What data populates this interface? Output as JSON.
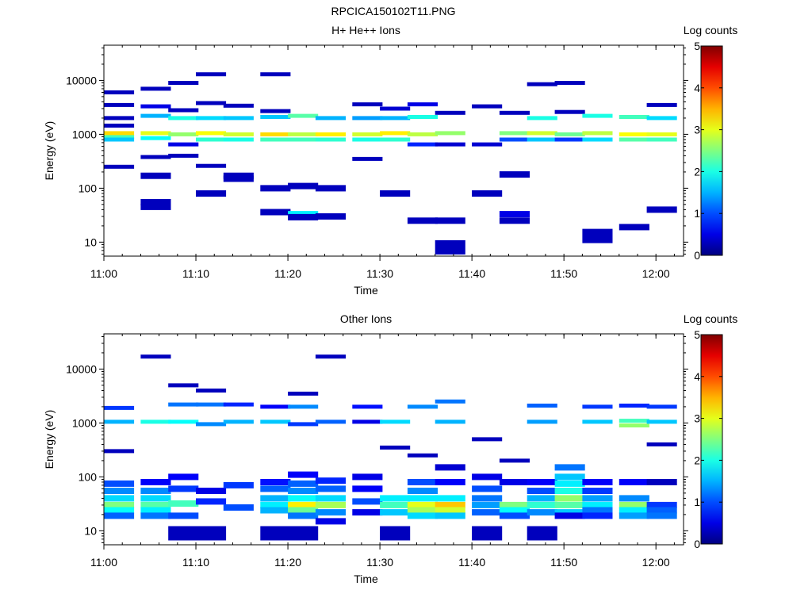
{
  "figure_title": "RPCICA150102T11.PNG",
  "chart_data": [
    {
      "type": "heatmap",
      "title": "H+ He++ Ions",
      "xlabel": "Time",
      "ylabel": "Energy (eV)",
      "x_ticks": [
        "11:00",
        "11:10",
        "11:20",
        "11:30",
        "11:40",
        "11:50",
        "12:00"
      ],
      "x_range": [
        "11:00",
        "12:03"
      ],
      "y_scale": "log",
      "y_ticks": [
        "10",
        "100",
        "1000",
        "10000"
      ],
      "y_range": [
        5.5,
        45000
      ],
      "colorbar": {
        "label": "Log counts",
        "ticks": [
          "0",
          "1",
          "2",
          "3",
          "4",
          "5"
        ],
        "range": [
          0,
          5
        ],
        "colormap": "jet"
      },
      "time_bins": [
        "11:00",
        "11:04",
        "11:07",
        "11:10",
        "11:13",
        "11:17",
        "11:20",
        "11:23",
        "11:27",
        "11:30",
        "11:33",
        "11:36",
        "11:40",
        "11:43",
        "11:46",
        "11:49",
        "11:52",
        "11:56",
        "11:59"
      ],
      "cells": [
        [
          0,
          2000,
          0.3
        ],
        [
          0,
          1450,
          0.3
        ],
        [
          0,
          900,
          2.2
        ],
        [
          0,
          1050,
          3.3
        ],
        [
          0,
          800,
          1.6
        ],
        [
          0,
          250,
          0.3
        ],
        [
          0,
          3500,
          0.3
        ],
        [
          0,
          6000,
          0.3
        ],
        [
          1,
          3300,
          0.5
        ],
        [
          1,
          2200,
          1.5
        ],
        [
          1,
          1050,
          3.0
        ],
        [
          1,
          850,
          1.9
        ],
        [
          1,
          380,
          0.3
        ],
        [
          1,
          170,
          0.3
        ],
        [
          1,
          55,
          0.3
        ],
        [
          1,
          45,
          0.3
        ],
        [
          1,
          7000,
          0.3
        ],
        [
          2,
          2800,
          0.3
        ],
        [
          2,
          2000,
          2.0
        ],
        [
          2,
          1000,
          2.6
        ],
        [
          2,
          650,
          0.5
        ],
        [
          2,
          400,
          0.3
        ],
        [
          2,
          9000,
          0.3
        ],
        [
          3,
          3800,
          0.3
        ],
        [
          3,
          2000,
          1.7
        ],
        [
          3,
          1050,
          3.1
        ],
        [
          3,
          800,
          2.1
        ],
        [
          3,
          260,
          0.3
        ],
        [
          3,
          80,
          0.3
        ],
        [
          3,
          13000,
          0.3
        ],
        [
          4,
          3400,
          0.3
        ],
        [
          4,
          2000,
          1.6
        ],
        [
          4,
          1000,
          2.9
        ],
        [
          4,
          800,
          2.0
        ],
        [
          4,
          170,
          0.3
        ],
        [
          4,
          150,
          0.3
        ],
        [
          5,
          2700,
          0.3
        ],
        [
          5,
          2100,
          1.6
        ],
        [
          5,
          1000,
          3.3
        ],
        [
          5,
          800,
          2.2
        ],
        [
          5,
          100,
          0.3
        ],
        [
          5,
          36,
          0.3
        ],
        [
          5,
          13000,
          0.3
        ],
        [
          6,
          2200,
          2.3
        ],
        [
          6,
          1000,
          2.8
        ],
        [
          6,
          800,
          2.2
        ],
        [
          6,
          110,
          0.3
        ],
        [
          6,
          33,
          1.8
        ],
        [
          6,
          29,
          0.3
        ],
        [
          7,
          2000,
          1.5
        ],
        [
          7,
          1000,
          3.2
        ],
        [
          7,
          800,
          2.1
        ],
        [
          7,
          100,
          0.3
        ],
        [
          7,
          30,
          0.3
        ],
        [
          8,
          3600,
          0.3
        ],
        [
          8,
          2000,
          1.4
        ],
        [
          8,
          1000,
          2.9
        ],
        [
          8,
          800,
          2.0
        ],
        [
          8,
          350,
          0.3
        ],
        [
          9,
          3000,
          0.4
        ],
        [
          9,
          2000,
          1.5
        ],
        [
          9,
          1050,
          3.2
        ],
        [
          9,
          800,
          2.1
        ],
        [
          9,
          80,
          0.3
        ],
        [
          10,
          3600,
          0.5
        ],
        [
          10,
          2100,
          2.0
        ],
        [
          10,
          1000,
          2.8
        ],
        [
          10,
          650,
          0.8
        ],
        [
          10,
          25,
          0.3
        ],
        [
          11,
          2500,
          0.3
        ],
        [
          11,
          1050,
          2.6
        ],
        [
          11,
          650,
          0.4
        ],
        [
          11,
          25,
          0.3
        ],
        [
          11,
          8,
          0.3
        ],
        [
          12,
          3300,
          0.3
        ],
        [
          12,
          650,
          0.4
        ],
        [
          12,
          80,
          0.3
        ],
        [
          13,
          2500,
          0.3
        ],
        [
          13,
          1050,
          2.5
        ],
        [
          13,
          800,
          1.0
        ],
        [
          13,
          180,
          0.3
        ],
        [
          13,
          33,
          0.5
        ],
        [
          13,
          25,
          0.3
        ],
        [
          14,
          2000,
          2.0
        ],
        [
          14,
          1050,
          2.9
        ],
        [
          14,
          800,
          1.6
        ],
        [
          14,
          8500,
          0.3
        ],
        [
          15,
          2600,
          0.3
        ],
        [
          15,
          1000,
          2.4
        ],
        [
          15,
          800,
          0.9
        ],
        [
          15,
          9000,
          0.3
        ],
        [
          16,
          2200,
          2.0
        ],
        [
          16,
          1050,
          2.8
        ],
        [
          16,
          800,
          1.7
        ],
        [
          16,
          13,
          0.3
        ],
        [
          17,
          2100,
          2.2
        ],
        [
          17,
          1000,
          3.1
        ],
        [
          17,
          800,
          2.3
        ],
        [
          17,
          19,
          0.3
        ],
        [
          18,
          3500,
          0.3
        ],
        [
          18,
          2000,
          1.7
        ],
        [
          18,
          1000,
          3.0
        ],
        [
          18,
          800,
          2.2
        ],
        [
          18,
          40,
          0.3
        ]
      ]
    },
    {
      "type": "heatmap",
      "title": "Other Ions",
      "xlabel": "Time",
      "ylabel": "Energy (eV)",
      "x_ticks": [
        "11:00",
        "11:10",
        "11:20",
        "11:30",
        "11:40",
        "11:50",
        "12:00"
      ],
      "x_range": [
        "11:00",
        "12:03"
      ],
      "y_scale": "log",
      "y_ticks": [
        "10",
        "100",
        "1000",
        "10000"
      ],
      "y_range": [
        5.5,
        45000
      ],
      "colorbar": {
        "label": "Log counts",
        "ticks": [
          "0",
          "1",
          "2",
          "3",
          "4",
          "5"
        ],
        "range": [
          0,
          5
        ],
        "colormap": "jet"
      },
      "time_bins": [
        "11:00",
        "11:04",
        "11:07",
        "11:10",
        "11:13",
        "11:17",
        "11:20",
        "11:23",
        "11:27",
        "11:30",
        "11:33",
        "11:36",
        "11:40",
        "11:43",
        "11:46",
        "11:49",
        "11:52",
        "11:56",
        "11:59"
      ],
      "cells": [
        [
          0,
          1900,
          0.9
        ],
        [
          0,
          1050,
          1.5
        ],
        [
          0,
          300,
          0.3
        ],
        [
          0,
          75,
          1.0
        ],
        [
          0,
          55,
          1.3
        ],
        [
          0,
          40,
          1.7
        ],
        [
          0,
          30,
          2.5
        ],
        [
          0,
          24,
          1.9
        ],
        [
          0,
          19,
          1.1
        ],
        [
          1,
          17000,
          0.3
        ],
        [
          1,
          1050,
          2.0
        ],
        [
          1,
          80,
          0.6
        ],
        [
          1,
          55,
          1.3
        ],
        [
          1,
          40,
          1.7
        ],
        [
          1,
          30,
          2.3
        ],
        [
          1,
          24,
          1.8
        ],
        [
          1,
          19,
          1.2
        ],
        [
          2,
          5000,
          0.3
        ],
        [
          2,
          2200,
          1.2
        ],
        [
          2,
          1050,
          1.9
        ],
        [
          2,
          100,
          0.6
        ],
        [
          2,
          60,
          0.9
        ],
        [
          2,
          32,
          2.2
        ],
        [
          2,
          19,
          1.0
        ],
        [
          2,
          9,
          0.3
        ],
        [
          3,
          4000,
          0.3
        ],
        [
          3,
          2200,
          1.2
        ],
        [
          3,
          950,
          1.3
        ],
        [
          3,
          55,
          0.5
        ],
        [
          3,
          35,
          0.8
        ],
        [
          3,
          9,
          0.3
        ],
        [
          4,
          2200,
          0.8
        ],
        [
          4,
          1050,
          1.5
        ],
        [
          4,
          70,
          0.9
        ],
        [
          4,
          27,
          1.0
        ],
        [
          5,
          2000,
          0.6
        ],
        [
          5,
          1050,
          1.6
        ],
        [
          5,
          80,
          0.7
        ],
        [
          5,
          60,
          1.1
        ],
        [
          5,
          40,
          1.5
        ],
        [
          5,
          30,
          1.8
        ],
        [
          5,
          24,
          1.5
        ],
        [
          5,
          9,
          0.3
        ],
        [
          6,
          3500,
          0.3
        ],
        [
          6,
          2000,
          1.3
        ],
        [
          6,
          950,
          0.9
        ],
        [
          6,
          110,
          0.6
        ],
        [
          6,
          75,
          1.1
        ],
        [
          6,
          55,
          1.3
        ],
        [
          6,
          40,
          1.9
        ],
        [
          6,
          30,
          3.2
        ],
        [
          6,
          24,
          2.4
        ],
        [
          6,
          19,
          1.2
        ],
        [
          6,
          9,
          0.3
        ],
        [
          7,
          17000,
          0.3
        ],
        [
          7,
          1050,
          1.1
        ],
        [
          7,
          85,
          0.8
        ],
        [
          7,
          60,
          1.1
        ],
        [
          7,
          40,
          1.7
        ],
        [
          7,
          30,
          2.7
        ],
        [
          7,
          22,
          1.3
        ],
        [
          7,
          15,
          0.5
        ],
        [
          8,
          2000,
          0.7
        ],
        [
          8,
          1050,
          0.5
        ],
        [
          8,
          100,
          0.5
        ],
        [
          8,
          60,
          0.6
        ],
        [
          8,
          35,
          1.0
        ],
        [
          8,
          22,
          0.5
        ],
        [
          9,
          1050,
          1.7
        ],
        [
          9,
          350,
          0.3
        ],
        [
          9,
          40,
          1.8
        ],
        [
          9,
          30,
          2.2
        ],
        [
          9,
          22,
          1.6
        ],
        [
          9,
          9,
          0.3
        ],
        [
          10,
          2000,
          1.3
        ],
        [
          10,
          250,
          0.3
        ],
        [
          10,
          80,
          1.0
        ],
        [
          10,
          55,
          1.3
        ],
        [
          10,
          40,
          1.8
        ],
        [
          10,
          30,
          3.0
        ],
        [
          10,
          24,
          2.7
        ],
        [
          10,
          19,
          1.7
        ],
        [
          11,
          2500,
          1.2
        ],
        [
          11,
          1050,
          1.5
        ],
        [
          11,
          150,
          0.4
        ],
        [
          11,
          80,
          0.6
        ],
        [
          11,
          40,
          1.8
        ],
        [
          11,
          30,
          3.4
        ],
        [
          11,
          24,
          2.9
        ],
        [
          11,
          19,
          1.6
        ],
        [
          12,
          500,
          0.3
        ],
        [
          12,
          100,
          0.5
        ],
        [
          12,
          60,
          1.0
        ],
        [
          12,
          40,
          1.2
        ],
        [
          12,
          30,
          1.4
        ],
        [
          12,
          22,
          1.1
        ],
        [
          12,
          9,
          0.3
        ],
        [
          13,
          200,
          0.3
        ],
        [
          13,
          80,
          0.5
        ],
        [
          13,
          30,
          2.5
        ],
        [
          13,
          24,
          1.9
        ],
        [
          13,
          19,
          1.0
        ],
        [
          14,
          2100,
          1.1
        ],
        [
          14,
          1050,
          1.4
        ],
        [
          14,
          80,
          0.6
        ],
        [
          14,
          55,
          1.0
        ],
        [
          14,
          40,
          1.5
        ],
        [
          14,
          30,
          2.1
        ],
        [
          14,
          22,
          1.3
        ],
        [
          14,
          9,
          0.3
        ],
        [
          15,
          150,
          1.2
        ],
        [
          15,
          100,
          1.6
        ],
        [
          15,
          75,
          1.8
        ],
        [
          15,
          55,
          2.0
        ],
        [
          15,
          40,
          2.6
        ],
        [
          15,
          30,
          2.3
        ],
        [
          15,
          22,
          1.6
        ],
        [
          15,
          19,
          0.5
        ],
        [
          16,
          2000,
          0.9
        ],
        [
          16,
          1050,
          1.6
        ],
        [
          16,
          80,
          0.6
        ],
        [
          16,
          55,
          0.9
        ],
        [
          16,
          40,
          1.4
        ],
        [
          16,
          30,
          1.8
        ],
        [
          16,
          24,
          1.2
        ],
        [
          16,
          19,
          0.8
        ],
        [
          17,
          2100,
          0.8
        ],
        [
          17,
          1100,
          2.2
        ],
        [
          17,
          900,
          2.6
        ],
        [
          17,
          80,
          0.6
        ],
        [
          17,
          40,
          1.3
        ],
        [
          17,
          30,
          2.6
        ],
        [
          17,
          24,
          1.8
        ],
        [
          17,
          19,
          1.4
        ],
        [
          18,
          2000,
          0.9
        ],
        [
          18,
          1050,
          1.6
        ],
        [
          18,
          400,
          0.3
        ],
        [
          18,
          80,
          0.3
        ],
        [
          18,
          30,
          0.9
        ],
        [
          18,
          24,
          1.1
        ],
        [
          18,
          19,
          1.2
        ]
      ]
    }
  ]
}
